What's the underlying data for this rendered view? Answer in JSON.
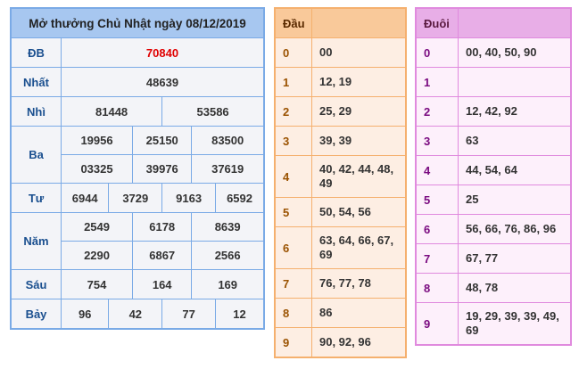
{
  "results": {
    "title": "Mở thưởng Chủ Nhật ngày 08/12/2019",
    "special_color": "#e00000",
    "prizes": [
      {
        "label": "ĐB",
        "rows": [
          [
            "70840"
          ]
        ]
      },
      {
        "label": "Nhất",
        "rows": [
          [
            "48639"
          ]
        ]
      },
      {
        "label": "Nhì",
        "rows": [
          [
            "81448",
            "53586"
          ]
        ]
      },
      {
        "label": "Ba",
        "rows": [
          [
            "19956",
            "25150",
            "83500"
          ],
          [
            "03325",
            "39976",
            "37619"
          ]
        ]
      },
      {
        "label": "Tư",
        "rows": [
          [
            "6944",
            "3729",
            "9163",
            "6592"
          ]
        ]
      },
      {
        "label": "Năm",
        "rows": [
          [
            "2549",
            "6178",
            "8639"
          ],
          [
            "2290",
            "6867",
            "2566"
          ]
        ]
      },
      {
        "label": "Sáu",
        "rows": [
          [
            "754",
            "164",
            "169"
          ]
        ]
      },
      {
        "label": "Bảy",
        "rows": [
          [
            "96",
            "42",
            "77",
            "12"
          ]
        ]
      }
    ]
  },
  "dau": {
    "header": "Đầu",
    "header_value": "",
    "rows": [
      {
        "key": "0",
        "value": "00"
      },
      {
        "key": "1",
        "value": "12, 19"
      },
      {
        "key": "2",
        "value": "25, 29"
      },
      {
        "key": "3",
        "value": "39, 39"
      },
      {
        "key": "4",
        "value": "40, 42, 44, 48, 49"
      },
      {
        "key": "5",
        "value": "50, 54, 56"
      },
      {
        "key": "6",
        "value": "63, 64, 66, 67, 69"
      },
      {
        "key": "7",
        "value": "76, 77, 78"
      },
      {
        "key": "8",
        "value": "86"
      },
      {
        "key": "9",
        "value": "90, 92, 96"
      }
    ]
  },
  "duoi": {
    "header": "Đuôi",
    "header_value": "",
    "rows": [
      {
        "key": "0",
        "value": "00, 40, 50, 90"
      },
      {
        "key": "1",
        "value": ""
      },
      {
        "key": "2",
        "value": "12, 42, 92"
      },
      {
        "key": "3",
        "value": "63"
      },
      {
        "key": "4",
        "value": "44, 54, 64"
      },
      {
        "key": "5",
        "value": "25"
      },
      {
        "key": "6",
        "value": "56, 66, 76, 86, 96"
      },
      {
        "key": "7",
        "value": "67, 77"
      },
      {
        "key": "8",
        "value": "48, 78"
      },
      {
        "key": "9",
        "value": "19, 29, 39, 39, 49, 69"
      }
    ]
  }
}
